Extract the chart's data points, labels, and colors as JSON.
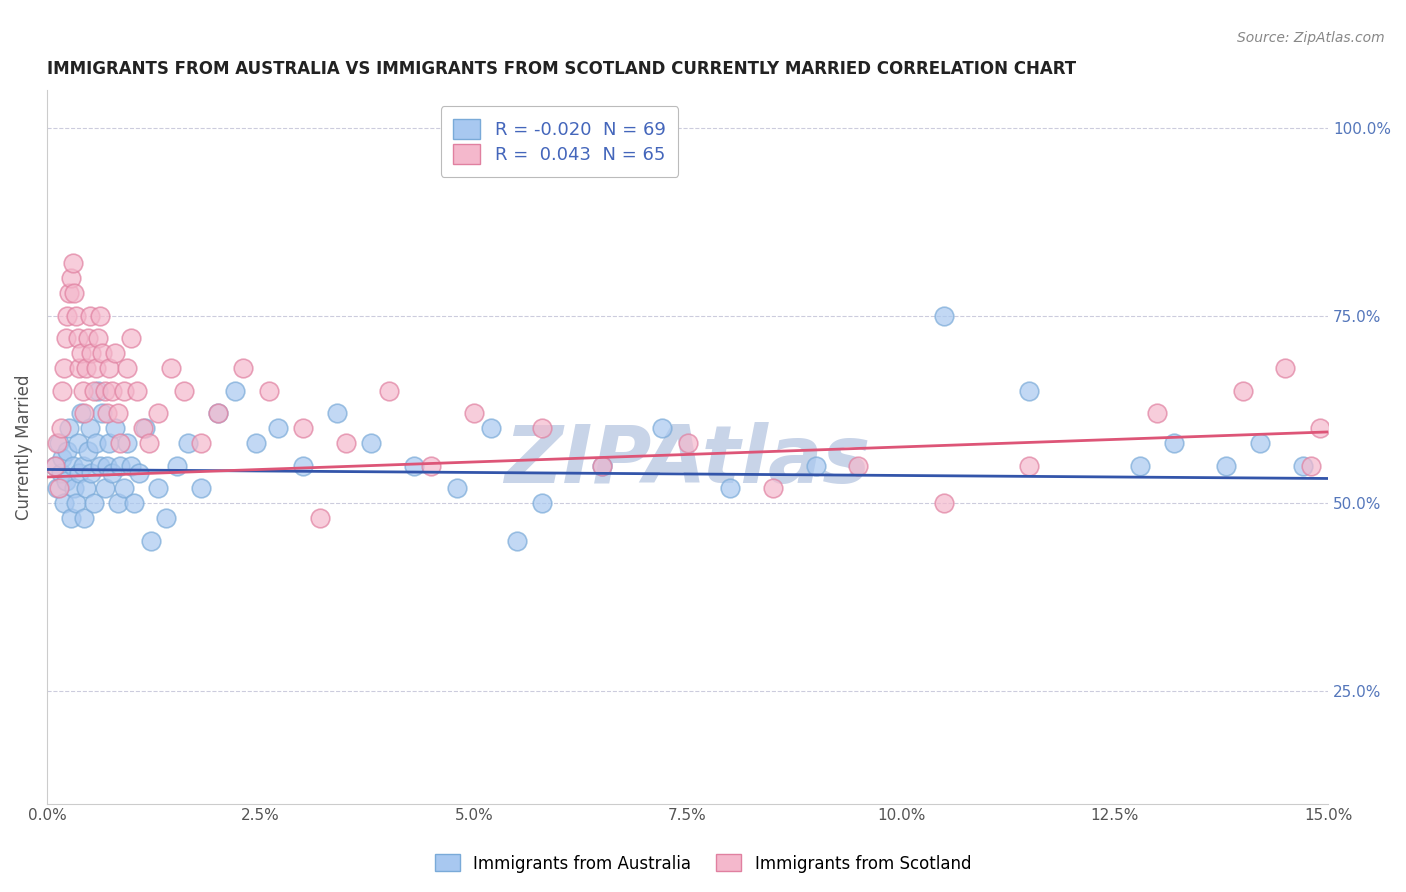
{
  "title": "IMMIGRANTS FROM AUSTRALIA VS IMMIGRANTS FROM SCOTLAND CURRENTLY MARRIED CORRELATION CHART",
  "source_text": "Source: ZipAtlas.com",
  "xlabel": "",
  "ylabel": "Currently Married",
  "watermark": "ZIPAtlas",
  "xlim": [
    0.0,
    15.0
  ],
  "ylim": [
    10.0,
    105.0
  ],
  "xticks": [
    0.0,
    2.5,
    5.0,
    7.5,
    10.0,
    12.5,
    15.0
  ],
  "yticks": [
    25.0,
    50.0,
    75.0,
    100.0
  ],
  "ytick_labels": [
    "25.0%",
    "50.0%",
    "75.0%",
    "100.0%"
  ],
  "xtick_labels": [
    "0.0%",
    "2.5%",
    "5.0%",
    "7.5%",
    "10.0%",
    "12.5%",
    "15.0%"
  ],
  "legend_label_australia": "Immigrants from Australia",
  "legend_label_scotland": "Immigrants from Scotland",
  "R_australia": -0.02,
  "N_australia": 69,
  "R_scotland": 0.043,
  "N_scotland": 65,
  "australia_color": "#a8c8f0",
  "australia_edge_color": "#7aaad8",
  "scotland_color": "#f4b8cc",
  "scotland_edge_color": "#e080a0",
  "australia_line_color": "#3355aa",
  "scotland_line_color": "#dd5577",
  "title_color": "#222222",
  "source_color": "#888888",
  "axis_color": "#cccccc",
  "grid_color": "#ccccdd",
  "watermark_color": "#c8d4e8",
  "background_color": "#ffffff",
  "aus_intercept": 54.5,
  "aus_slope": -0.08,
  "sco_intercept": 53.5,
  "sco_slope": 0.4,
  "australia_x": [
    0.1,
    0.12,
    0.14,
    0.16,
    0.18,
    0.2,
    0.22,
    0.24,
    0.26,
    0.28,
    0.3,
    0.32,
    0.34,
    0.36,
    0.38,
    0.4,
    0.42,
    0.44,
    0.46,
    0.48,
    0.5,
    0.52,
    0.55,
    0.58,
    0.6,
    0.62,
    0.65,
    0.68,
    0.7,
    0.73,
    0.76,
    0.8,
    0.83,
    0.86,
    0.9,
    0.94,
    0.98,
    1.02,
    1.08,
    1.15,
    1.22,
    1.3,
    1.4,
    1.52,
    1.65,
    1.8,
    2.0,
    2.2,
    2.45,
    2.7,
    3.0,
    3.4,
    3.8,
    4.3,
    4.8,
    5.2,
    5.8,
    6.5,
    7.2,
    8.0,
    9.0,
    10.5,
    11.5,
    12.8,
    13.2,
    13.8,
    14.2,
    14.7,
    5.5
  ],
  "australia_y": [
    55,
    52,
    58,
    54,
    56,
    50,
    53,
    57,
    60,
    48,
    55,
    52,
    50,
    58,
    54,
    62,
    55,
    48,
    52,
    57,
    60,
    54,
    50,
    58,
    65,
    55,
    62,
    52,
    55,
    58,
    54,
    60,
    50,
    55,
    52,
    58,
    55,
    50,
    54,
    60,
    45,
    52,
    48,
    55,
    58,
    52,
    62,
    65,
    58,
    60,
    55,
    62,
    58,
    55,
    52,
    60,
    50,
    55,
    60,
    52,
    55,
    75,
    65,
    55,
    58,
    55,
    58,
    55,
    45
  ],
  "scotland_x": [
    0.1,
    0.12,
    0.14,
    0.16,
    0.18,
    0.2,
    0.22,
    0.24,
    0.26,
    0.28,
    0.3,
    0.32,
    0.34,
    0.36,
    0.38,
    0.4,
    0.42,
    0.44,
    0.46,
    0.48,
    0.5,
    0.52,
    0.55,
    0.58,
    0.6,
    0.62,
    0.65,
    0.68,
    0.7,
    0.73,
    0.76,
    0.8,
    0.83,
    0.86,
    0.9,
    0.94,
    0.98,
    1.05,
    1.12,
    1.2,
    1.3,
    1.45,
    1.6,
    1.8,
    2.0,
    2.3,
    2.6,
    3.0,
    3.5,
    4.0,
    4.5,
    5.0,
    5.8,
    6.5,
    7.5,
    8.5,
    9.5,
    10.5,
    11.5,
    13.0,
    14.0,
    14.5,
    14.8,
    14.9,
    3.2
  ],
  "scotland_y": [
    55,
    58,
    52,
    60,
    65,
    68,
    72,
    75,
    78,
    80,
    82,
    78,
    75,
    72,
    68,
    70,
    65,
    62,
    68,
    72,
    75,
    70,
    65,
    68,
    72,
    75,
    70,
    65,
    62,
    68,
    65,
    70,
    62,
    58,
    65,
    68,
    72,
    65,
    60,
    58,
    62,
    68,
    65,
    58,
    62,
    68,
    65,
    60,
    58,
    65,
    55,
    62,
    60,
    55,
    58,
    52,
    55,
    50,
    55,
    62,
    65,
    68,
    55,
    60,
    48
  ]
}
